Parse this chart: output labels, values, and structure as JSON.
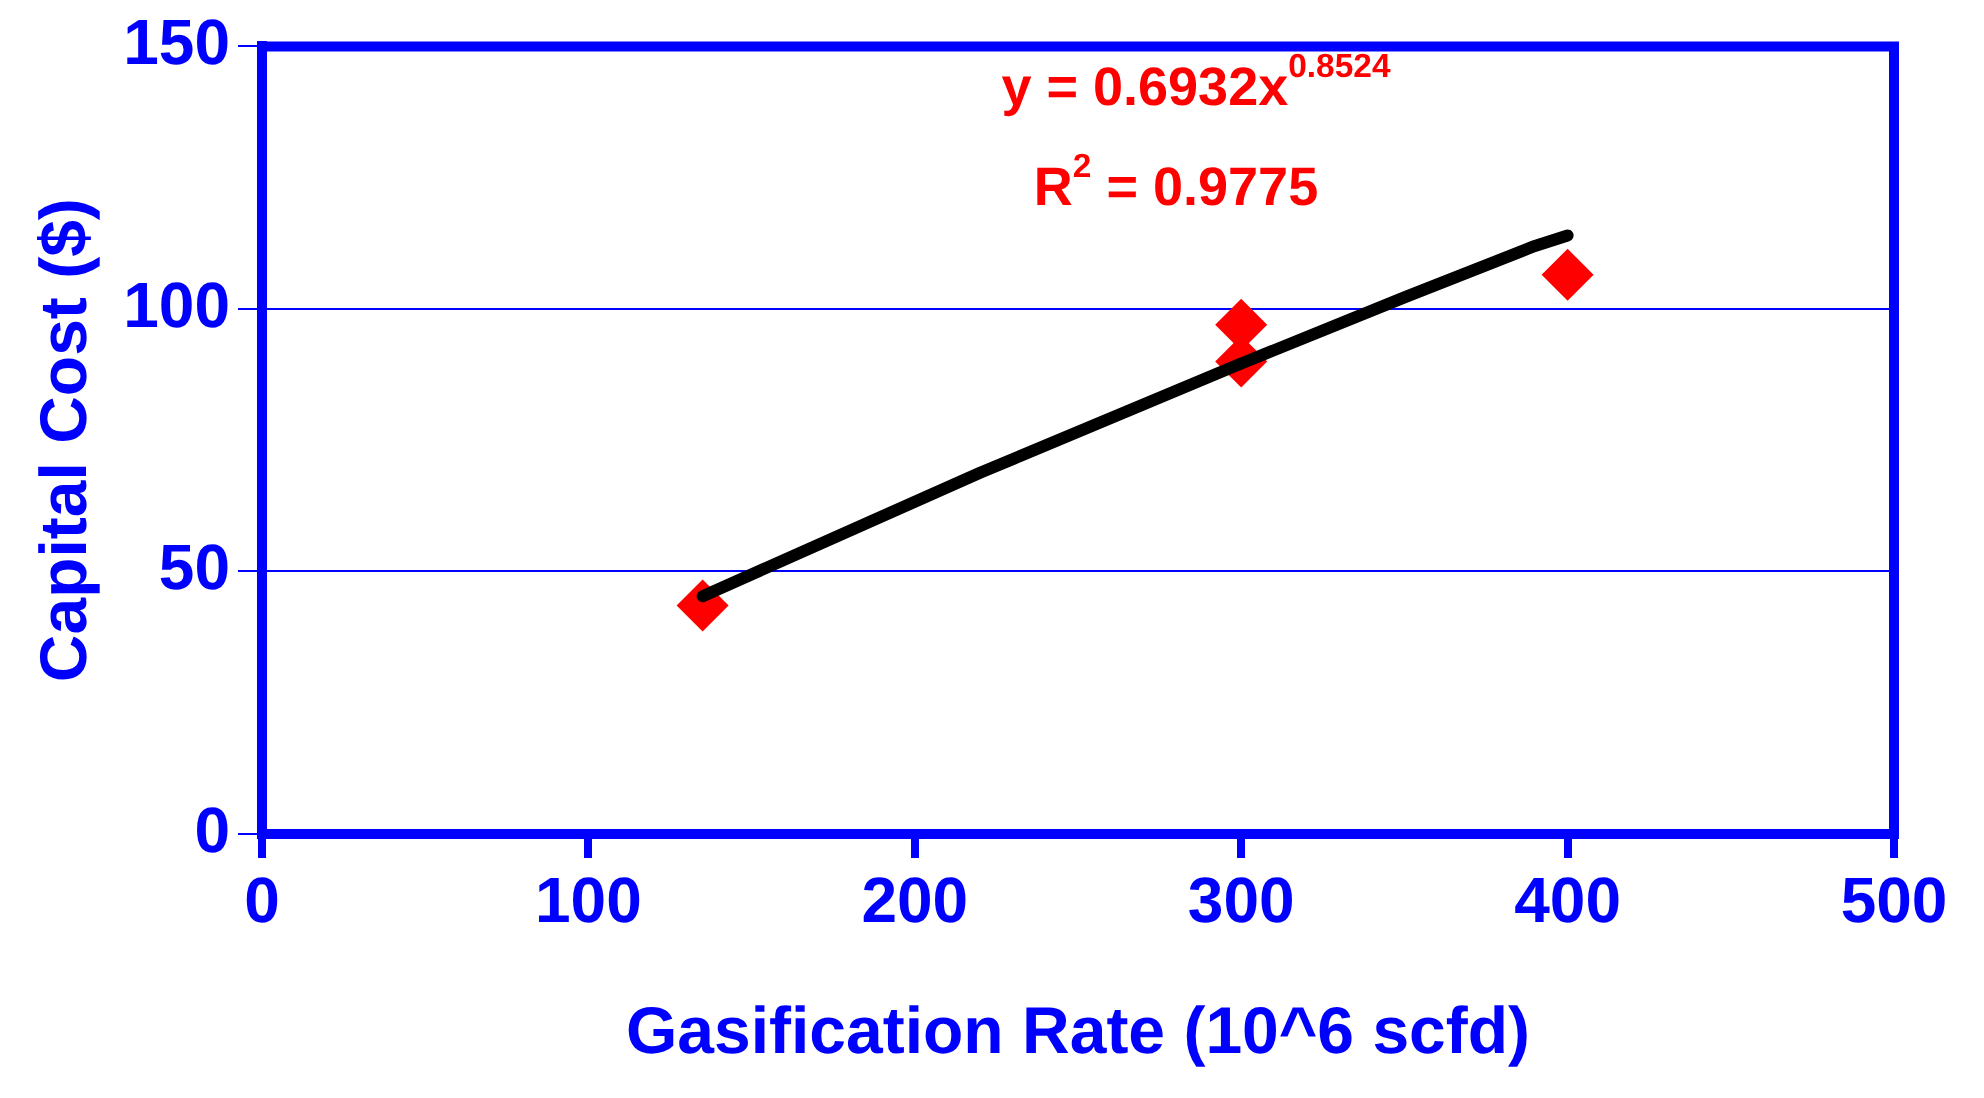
{
  "chart_data": {
    "type": "scatter",
    "xlabel": "Gasification Rate (10^6 scfd)",
    "ylabel": "Capital Cost ($)",
    "xlim": [
      0,
      500
    ],
    "xticks": [
      0,
      100,
      200,
      300,
      400,
      500
    ],
    "ylim": [
      0,
      150
    ],
    "yticks": [
      0,
      50,
      100,
      150
    ],
    "grid": "y",
    "legend": false,
    "marker": "diamond",
    "series": [
      {
        "color": "#ff0000",
        "x": [
          135,
          300,
          300,
          400
        ],
        "values": [
          43.5,
          97,
          90,
          106.5
        ]
      },
      {
        "type": "line",
        "color": "#000000",
        "marker": "none",
        "x": [
          135,
          220,
          300,
          350,
          390,
          400
        ],
        "values": [
          45.3,
          68.8,
          89.6,
          102.2,
          112,
          114
        ]
      }
    ],
    "annotations": [
      "y = 0.6932x$^{0.8524}$",
      "R$^{2}$ = 0.9775"
    ]
  }
}
